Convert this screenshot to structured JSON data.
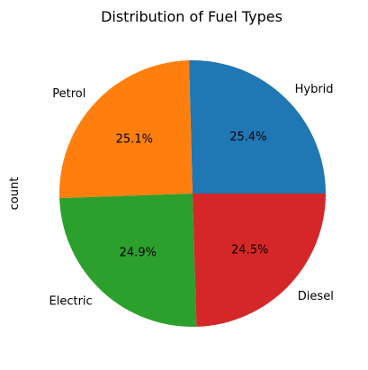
{
  "chart_data": {
    "type": "pie",
    "title": "Distribution of Fuel Types",
    "ylabel": "count",
    "categories": [
      "Hybrid",
      "Petrol",
      "Electric",
      "Diesel"
    ],
    "values": [
      25.4,
      25.1,
      24.9,
      24.5
    ],
    "percent_labels": [
      "25.4%",
      "25.1%",
      "24.9%",
      "24.5%"
    ],
    "colors": [
      "#1f77b4",
      "#ff7f0e",
      "#2ca02c",
      "#d62728"
    ],
    "start_angle_deg": 0,
    "direction": "counterclockwise"
  }
}
